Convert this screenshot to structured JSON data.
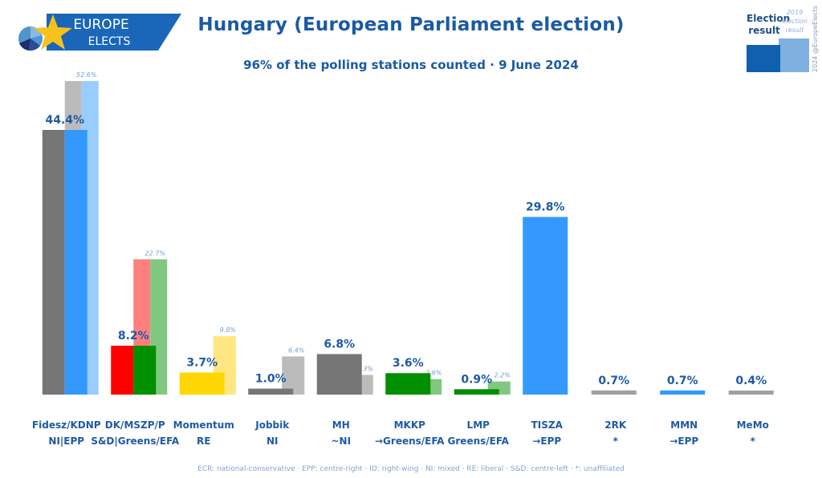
{
  "logo": {
    "line1": "EUROPE",
    "line2": "ELECTS",
    "colors": {
      "banner": "#1a66b8",
      "star": "#f7c21b"
    }
  },
  "header": {
    "title": "Hungary (European Parliament election)",
    "subtitle": "96% of the polling stations counted · 9 June 2024"
  },
  "legend": {
    "main_label_line1": "Election",
    "main_label_line2": "result",
    "prev_label_line1": "2019",
    "prev_label_line2": "election",
    "prev_label_line3": "result",
    "credit": "2024 @EuropeElects"
  },
  "footnote": "ECR: national-conservative · EPP: centre-right · ID: right-wing · NI: mixed · RE: liberal · S&D: centre-left · *: unaffiliated",
  "chart_data": {
    "type": "bar",
    "title": "Hungary (European Parliament election)",
    "subtitle": "96% of the polling stations counted · 9 June 2024",
    "xlabel": "",
    "ylabel": "",
    "ylim": [
      0,
      55
    ],
    "grid": false,
    "legend_position": "top-right",
    "categories": [
      {
        "party": "Fidesz/KDNP",
        "group": "NI|EPP"
      },
      {
        "party": "DK/MSZP/P",
        "group": "S&D|Greens/EFA"
      },
      {
        "party": "Momentum",
        "group": "RE"
      },
      {
        "party": "Jobbik",
        "group": "NI"
      },
      {
        "party": "MH",
        "group": "~NI"
      },
      {
        "party": "MKKP",
        "group": "→Greens/EFA"
      },
      {
        "party": "LMP",
        "group": "Greens/EFA"
      },
      {
        "party": "TISZA",
        "group": "→EPP"
      },
      {
        "party": "2RK",
        "group": "*"
      },
      {
        "party": "MMN",
        "group": "→EPP"
      },
      {
        "party": "MeMo",
        "group": "*"
      }
    ],
    "series": [
      {
        "name": "Election result",
        "values": [
          44.4,
          8.2,
          3.7,
          1.0,
          6.8,
          3.6,
          0.9,
          29.8,
          0.7,
          0.7,
          0.4
        ],
        "labels": [
          "44.4%",
          "8.2%",
          "3.7%",
          "1.0%",
          "6.8%",
          "3.6%",
          "0.9%",
          "29.8%",
          "0.7%",
          "0.7%",
          "0.4%"
        ],
        "colors": [
          [
            "#767676",
            "#3399ff"
          ],
          [
            "#ff0000",
            "#008f00"
          ],
          [
            "#ffd700"
          ],
          [
            "#767676"
          ],
          [
            "#767676"
          ],
          [
            "#008f00"
          ],
          [
            "#008f00"
          ],
          [
            "#3399ff"
          ],
          [
            "#a0a0a0"
          ],
          [
            "#3399ff"
          ],
          [
            "#a0a0a0"
          ]
        ]
      },
      {
        "name": "2019 election result",
        "values": [
          52.6,
          22.7,
          9.8,
          6.4,
          3.3,
          2.6,
          2.2,
          null,
          null,
          null,
          null
        ],
        "labels": [
          "52.6%",
          "22.7%",
          "9.8%",
          "6.4%",
          "3.3%",
          "2.6%",
          "2.2%",
          null,
          null,
          null,
          null
        ],
        "colors": [
          [
            "#bbbbbb",
            "#99ccff"
          ],
          [
            "#ff7f7f",
            "#80c880"
          ],
          [
            "#ffe680"
          ],
          [
            "#bbbbbb"
          ],
          [
            "#bbbbbb"
          ],
          [
            "#80c880"
          ],
          [
            "#80c880"
          ],
          null,
          null,
          null,
          null
        ]
      }
    ]
  }
}
